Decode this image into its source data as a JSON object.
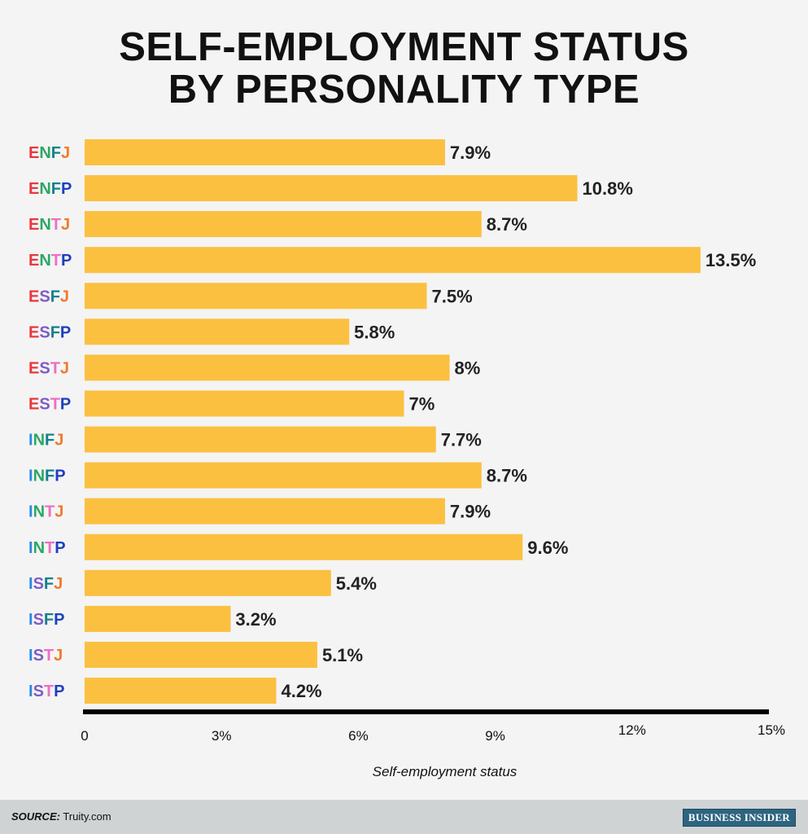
{
  "chart_data": {
    "type": "bar",
    "orientation": "horizontal",
    "title": [
      "SELF-EMPLOYMENT STATUS",
      "BY PERSONALITY TYPE"
    ],
    "xlabel": "Self-employment status",
    "ylabel": "",
    "categories": [
      "ENFJ",
      "ENFP",
      "ENTJ",
      "ENTP",
      "ESFJ",
      "ESFP",
      "ESTJ",
      "ESTP",
      "INFJ",
      "INFP",
      "INTJ",
      "INTP",
      "ISFJ",
      "ISFP",
      "ISTJ",
      "ISTP"
    ],
    "values": [
      7.9,
      10.8,
      8.7,
      13.5,
      7.5,
      5.8,
      8,
      7,
      7.7,
      8.7,
      7.9,
      9.6,
      5.4,
      3.2,
      5.1,
      4.2
    ],
    "data_labels": [
      "7.9%",
      "10.8%",
      "8.7%",
      "13.5%",
      "7.5%",
      "5.8%",
      "8%",
      "7%",
      "7.7%",
      "8.7%",
      "7.9%",
      "9.6%",
      "5.4%",
      "3.2%",
      "5.1%",
      "4.2%"
    ],
    "xlim": [
      0,
      15
    ],
    "xticks": [
      0,
      3,
      6,
      9,
      12,
      15
    ],
    "xtick_labels": [
      "0",
      "3%",
      "6%",
      "9%",
      "12%",
      "15%"
    ],
    "grid": false,
    "legend": "none",
    "bar_color": "#fbc040",
    "letter_colors": {
      "E": "#e8383d",
      "I": "#2a8ae0",
      "N": "#2aa865",
      "S": "#7e5cc8",
      "T": "#ee6fc0",
      "F": "#17808a",
      "J": "#f07a30",
      "P": "#1f3fbf"
    }
  },
  "footer": {
    "source_label": "SOURCE:",
    "source_value": "Truity.com",
    "brand": "BUSINESS INSIDER"
  }
}
